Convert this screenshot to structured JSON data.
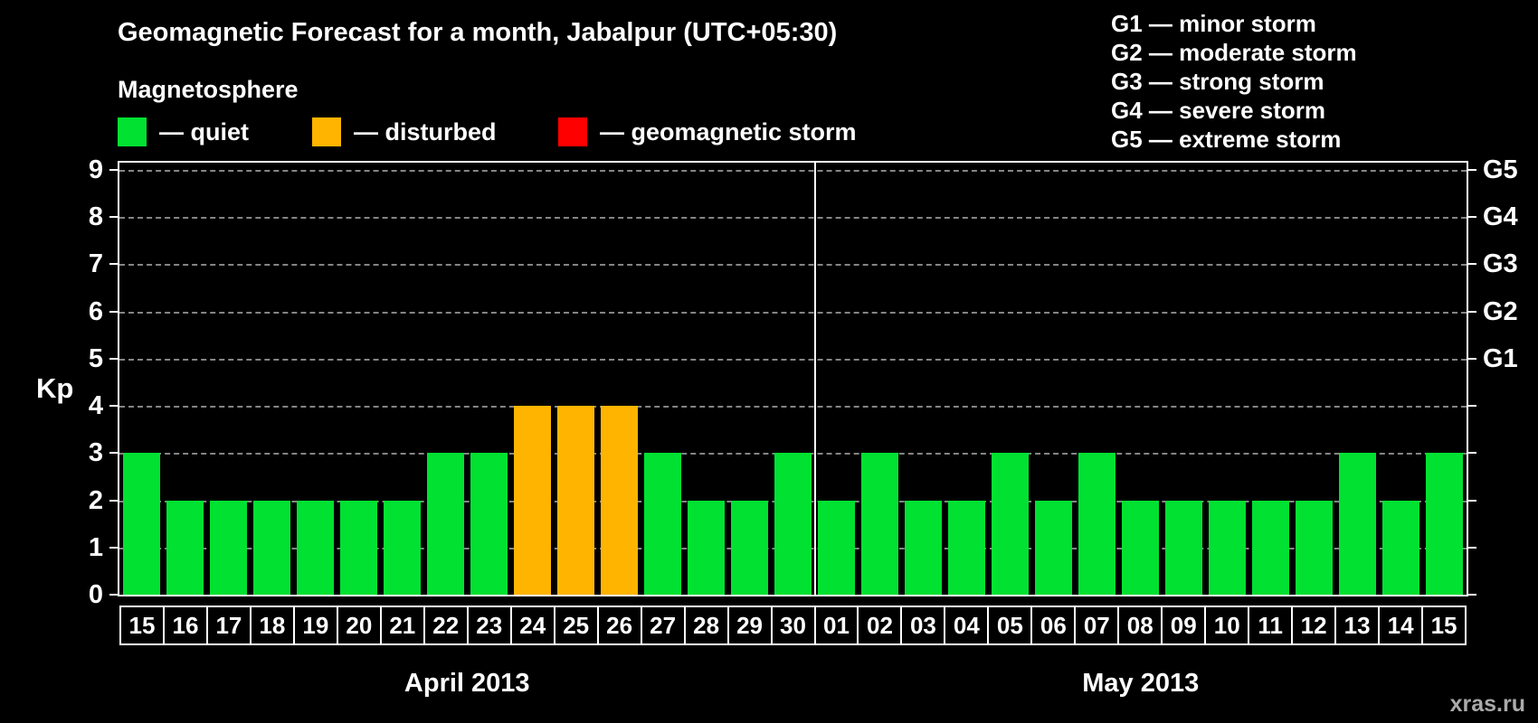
{
  "title": "Geomagnetic Forecast for a month, Jabalpur (UTC+05:30)",
  "legend": {
    "heading": "Magnetosphere",
    "items": [
      {
        "name": "quiet",
        "label": "— quiet",
        "color": "#00e132"
      },
      {
        "name": "disturbed",
        "label": "— disturbed",
        "color": "#ffb400"
      },
      {
        "name": "storm",
        "label": "— geomagnetic storm",
        "color": "#ff0000"
      }
    ]
  },
  "g_scale_legend": {
    "lines": [
      "G1 — minor storm",
      "G2 — moderate storm",
      "G3 — strong storm",
      "G4 — severe storm",
      "G5 — extreme storm"
    ]
  },
  "watermark": "xras.ru",
  "chart_data": {
    "type": "bar",
    "title": "Geomagnetic Forecast for a month, Jabalpur (UTC+05:30)",
    "ylabel": "Kp",
    "ylim": [
      0,
      9.15
    ],
    "yticks": [
      0,
      1,
      2,
      3,
      4,
      5,
      6,
      7,
      8,
      9
    ],
    "right_axis_labels": [
      {
        "label": "G5",
        "value": 9
      },
      {
        "label": "G4",
        "value": 8
      },
      {
        "label": "G3",
        "value": 7
      },
      {
        "label": "G2",
        "value": 6
      },
      {
        "label": "G1",
        "value": 5
      }
    ],
    "grid": {
      "horizontal": "dashed",
      "color": "#858585"
    },
    "legend_position": "top",
    "status_colors": {
      "quiet": "#00e132",
      "disturbed": "#ffb400",
      "storm": "#ff0000"
    },
    "months": [
      {
        "label": "April 2013",
        "bars": [
          {
            "day": "15",
            "kp": 3,
            "status": "quiet"
          },
          {
            "day": "16",
            "kp": 2,
            "status": "quiet"
          },
          {
            "day": "17",
            "kp": 2,
            "status": "quiet"
          },
          {
            "day": "18",
            "kp": 2,
            "status": "quiet"
          },
          {
            "day": "19",
            "kp": 2,
            "status": "quiet"
          },
          {
            "day": "20",
            "kp": 2,
            "status": "quiet"
          },
          {
            "day": "21",
            "kp": 2,
            "status": "quiet"
          },
          {
            "day": "22",
            "kp": 3,
            "status": "quiet"
          },
          {
            "day": "23",
            "kp": 3,
            "status": "quiet"
          },
          {
            "day": "24",
            "kp": 4,
            "status": "disturbed"
          },
          {
            "day": "25",
            "kp": 4,
            "status": "disturbed"
          },
          {
            "day": "26",
            "kp": 4,
            "status": "disturbed"
          },
          {
            "day": "27",
            "kp": 3,
            "status": "quiet"
          },
          {
            "day": "28",
            "kp": 2,
            "status": "quiet"
          },
          {
            "day": "29",
            "kp": 2,
            "status": "quiet"
          },
          {
            "day": "30",
            "kp": 3,
            "status": "quiet"
          }
        ]
      },
      {
        "label": "May 2013",
        "bars": [
          {
            "day": "01",
            "kp": 2,
            "status": "quiet"
          },
          {
            "day": "02",
            "kp": 3,
            "status": "quiet"
          },
          {
            "day": "03",
            "kp": 2,
            "status": "quiet"
          },
          {
            "day": "04",
            "kp": 2,
            "status": "quiet"
          },
          {
            "day": "05",
            "kp": 3,
            "status": "quiet"
          },
          {
            "day": "06",
            "kp": 2,
            "status": "quiet"
          },
          {
            "day": "07",
            "kp": 3,
            "status": "quiet"
          },
          {
            "day": "08",
            "kp": 2,
            "status": "quiet"
          },
          {
            "day": "09",
            "kp": 2,
            "status": "quiet"
          },
          {
            "day": "10",
            "kp": 2,
            "status": "quiet"
          },
          {
            "day": "11",
            "kp": 2,
            "status": "quiet"
          },
          {
            "day": "12",
            "kp": 2,
            "status": "quiet"
          },
          {
            "day": "13",
            "kp": 3,
            "status": "quiet"
          },
          {
            "day": "14",
            "kp": 2,
            "status": "quiet"
          },
          {
            "day": "15",
            "kp": 3,
            "status": "quiet"
          }
        ]
      }
    ]
  }
}
